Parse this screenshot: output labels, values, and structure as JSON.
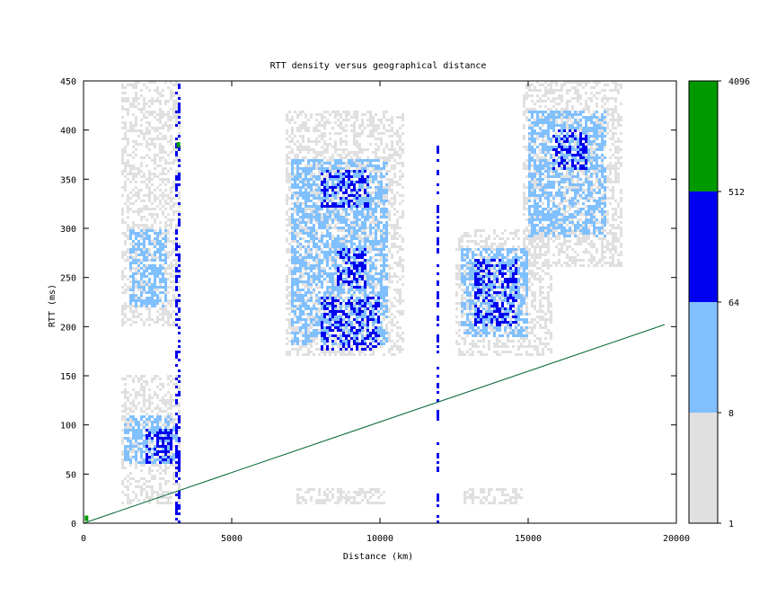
{
  "chart_data": {
    "type": "heatmap",
    "title": "RTT density versus geographical distance",
    "xlabel": "Distance (km)",
    "ylabel": "RTT (ms)",
    "xlim": [
      0,
      20000
    ],
    "ylim": [
      0,
      450
    ],
    "x_ticks": [
      0,
      5000,
      10000,
      15000,
      20000
    ],
    "y_ticks": [
      0,
      50,
      100,
      150,
      200,
      250,
      300,
      350,
      400,
      450
    ],
    "grid": false,
    "colorbar": {
      "scale": "log2",
      "ticks": [
        1,
        8,
        64,
        512,
        4096
      ],
      "bands": [
        {
          "from": 1,
          "to": 8,
          "color": "#e0e0e0"
        },
        {
          "from": 8,
          "to": 64,
          "color": "#80c0ff"
        },
        {
          "from": 64,
          "to": 512,
          "color": "#0000f0"
        },
        {
          "from": 512,
          "to": 4096,
          "color": "#009900"
        }
      ]
    },
    "reference_line": {
      "color": "#006633",
      "x": [
        0,
        19600
      ],
      "y": [
        0,
        202
      ]
    },
    "density_regions": [
      {
        "x": [
          1300,
          3300
        ],
        "y": [
          20,
          150
        ],
        "level": 1
      },
      {
        "x": [
          1400,
          3200
        ],
        "y": [
          60,
          110
        ],
        "level": 2
      },
      {
        "x": [
          2100,
          3000
        ],
        "y": [
          60,
          95
        ],
        "level": 3
      },
      {
        "x": [
          1300,
          3300
        ],
        "y": [
          200,
          450
        ],
        "level": 1
      },
      {
        "x": [
          1500,
          2800
        ],
        "y": [
          220,
          300
        ],
        "level": 2
      },
      {
        "x": [
          3100,
          3300
        ],
        "y": [
          0,
          450
        ],
        "level": 3
      },
      {
        "x": [
          6800,
          10800
        ],
        "y": [
          170,
          420
        ],
        "level": 1
      },
      {
        "x": [
          7000,
          10300
        ],
        "y": [
          180,
          370
        ],
        "level": 2
      },
      {
        "x": [
          8000,
          10000
        ],
        "y": [
          175,
          230
        ],
        "level": 3
      },
      {
        "x": [
          8500,
          9500
        ],
        "y": [
          240,
          280
        ],
        "level": 3
      },
      {
        "x": [
          8000,
          9600
        ],
        "y": [
          320,
          360
        ],
        "level": 3
      },
      {
        "x": [
          11900,
          12000
        ],
        "y": [
          0,
          390
        ],
        "level": 3
      },
      {
        "x": [
          12500,
          15800
        ],
        "y": [
          170,
          300
        ],
        "level": 1
      },
      {
        "x": [
          12700,
          15000
        ],
        "y": [
          190,
          280
        ],
        "level": 2
      },
      {
        "x": [
          13200,
          14600
        ],
        "y": [
          200,
          270
        ],
        "level": 3
      },
      {
        "x": [
          14800,
          18200
        ],
        "y": [
          260,
          450
        ],
        "level": 1
      },
      {
        "x": [
          15000,
          17600
        ],
        "y": [
          290,
          420
        ],
        "level": 2
      },
      {
        "x": [
          15800,
          17000
        ],
        "y": [
          360,
          400
        ],
        "level": 3
      },
      {
        "x": [
          7200,
          10200
        ],
        "y": [
          20,
          35
        ],
        "level": 1
      },
      {
        "x": [
          12800,
          14800
        ],
        "y": [
          20,
          35
        ],
        "level": 1
      }
    ],
    "hot_cells": [
      {
        "x": 3200,
        "y": 385
      },
      {
        "x": 100,
        "y": 5
      }
    ]
  }
}
